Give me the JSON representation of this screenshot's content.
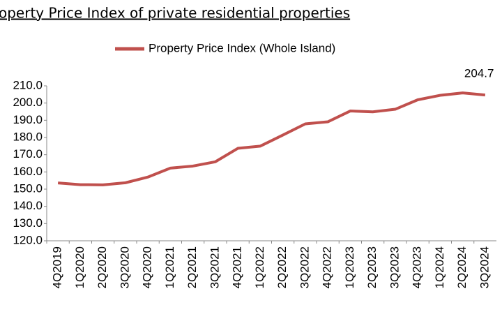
{
  "chart_data": {
    "type": "line",
    "title": "operty Price Index of private residential properties",
    "categories": [
      "4Q2019",
      "1Q2020",
      "2Q2020",
      "3Q2020",
      "4Q2020",
      "1Q2021",
      "2Q2021",
      "3Q2021",
      "4Q2021",
      "1Q2022",
      "2Q2022",
      "3Q2022",
      "4Q2022",
      "1Q2023",
      "2Q2023",
      "3Q2023",
      "4Q2023",
      "1Q2024",
      "2Q2024",
      "3Q2024"
    ],
    "series": [
      {
        "name": "Property Price Index (Whole Island)",
        "color": "#c0504d",
        "values": [
          153.6,
          152.6,
          152.5,
          153.7,
          157.0,
          162.2,
          163.4,
          165.9,
          173.7,
          175.0,
          181.4,
          187.9,
          189.1,
          195.4,
          194.9,
          196.4,
          201.9,
          204.5,
          205.9,
          204.7
        ],
        "value_labels": [
          null,
          null,
          null,
          null,
          null,
          null,
          null,
          null,
          null,
          null,
          null,
          null,
          null,
          null,
          null,
          null,
          null,
          null,
          null,
          "204.7"
        ]
      }
    ],
    "ylim": [
      120,
      210
    ],
    "yticks": [
      {
        "value": 120,
        "label": "120.0"
      },
      {
        "value": 130,
        "label": "130.0"
      },
      {
        "value": 140,
        "label": "140.0"
      },
      {
        "value": 150,
        "label": "150.0"
      },
      {
        "value": 160,
        "label": "160.0"
      },
      {
        "value": 170,
        "label": "170.0"
      },
      {
        "value": 180,
        "label": "180.0"
      },
      {
        "value": 190,
        "label": "190.0"
      },
      {
        "value": 200,
        "label": "200.0"
      },
      {
        "value": 210,
        "label": "210.0"
      }
    ],
    "grid": false
  }
}
